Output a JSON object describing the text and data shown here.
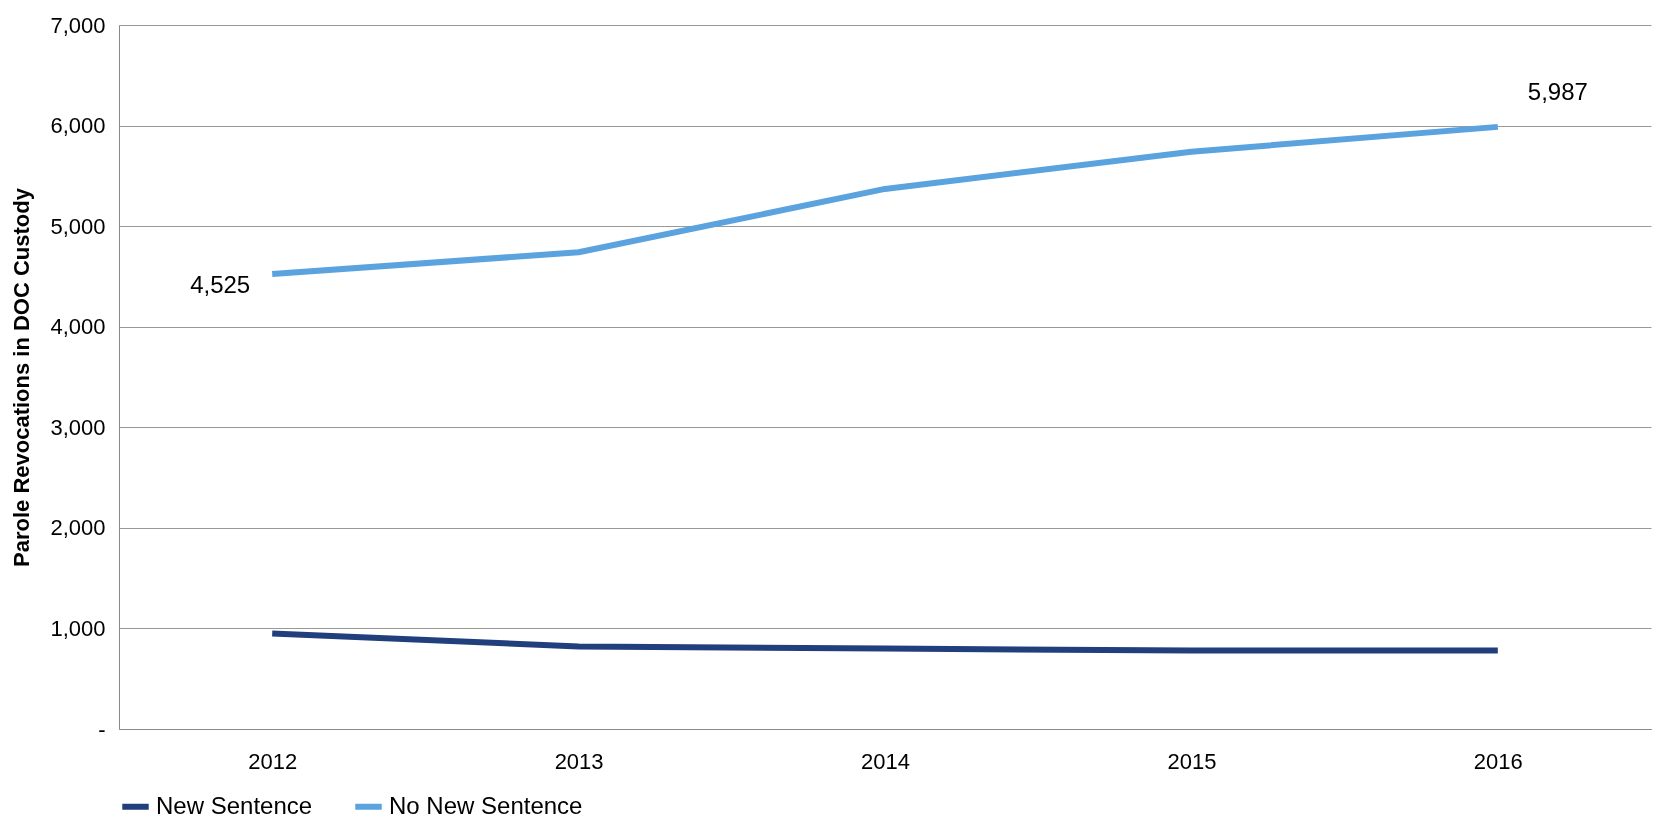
{
  "chart_data": {
    "type": "line",
    "ylabel": "Parole Revocations in DOC Custody",
    "categories": [
      "2012",
      "2013",
      "2014",
      "2015",
      "2016"
    ],
    "series": [
      {
        "name": "New Sentence",
        "color": "#203f7c",
        "values": [
          950,
          820,
          800,
          780,
          780
        ]
      },
      {
        "name": "No New Sentence",
        "color": "#5ba3de",
        "values": [
          4525,
          4740,
          5370,
          5740,
          5987
        ],
        "value_labels": [
          "4,525",
          null,
          null,
          null,
          "5,987"
        ]
      }
    ],
    "ylim": [
      0,
      7000
    ],
    "yticks": [
      {
        "value": 0,
        "label": "-"
      },
      {
        "value": 1000,
        "label": "1,000"
      },
      {
        "value": 2000,
        "label": "2,000"
      },
      {
        "value": 3000,
        "label": "3,000"
      },
      {
        "value": 4000,
        "label": "4,000"
      },
      {
        "value": 5000,
        "label": "5,000"
      },
      {
        "value": 6000,
        "label": "6,000"
      },
      {
        "value": 7000,
        "label": "7,000"
      }
    ],
    "grid": "y",
    "legend": "bottom",
    "marker": "none",
    "line_style": "solid"
  }
}
